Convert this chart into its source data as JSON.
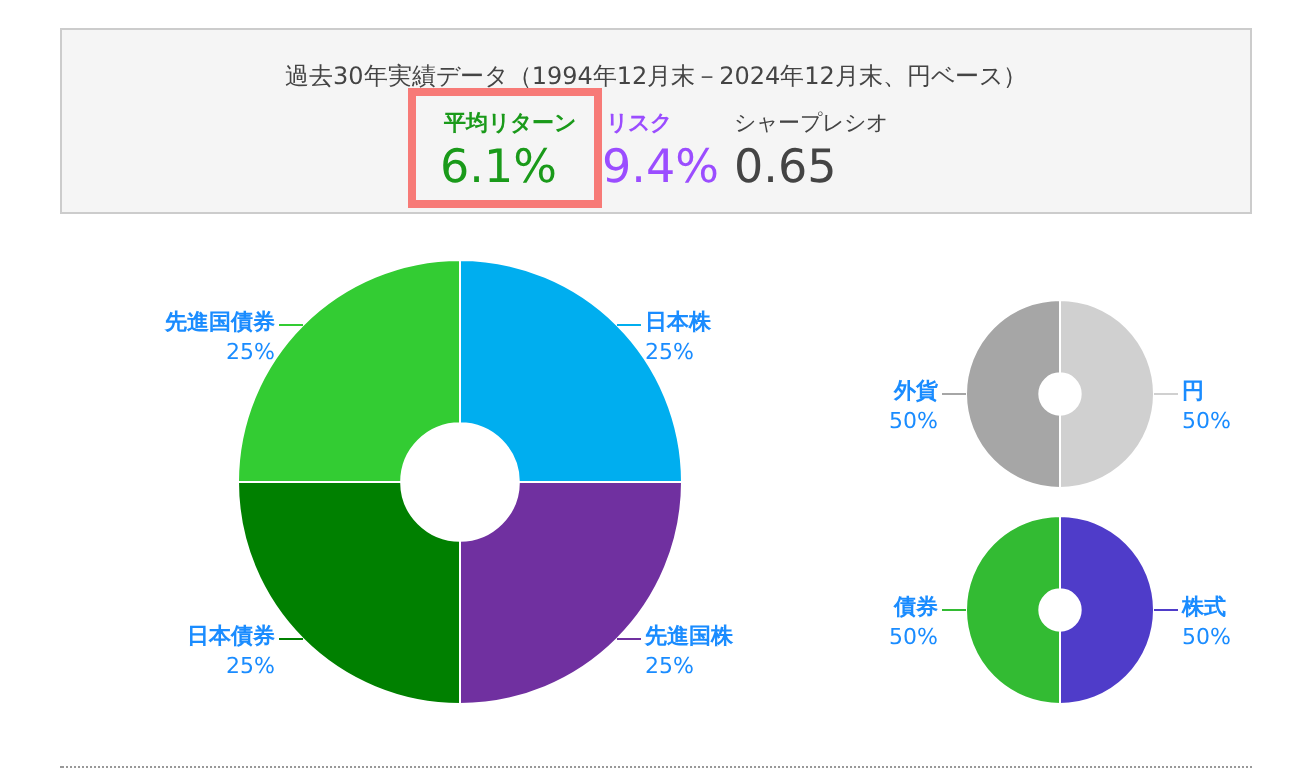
{
  "chart_data": [
    {
      "type": "other",
      "title": "過去30年実績データ（1994年12月末－2024年12月末、円ベース）",
      "annotations": [
        "平均リターン",
        "6.1%",
        "リスク",
        "9.4%",
        "シャープレシオ",
        "0.65"
      ]
    },
    {
      "type": "donut",
      "categories": [
        "日本株",
        "先進国株",
        "日本債券",
        "先進国債券"
      ],
      "values": [
        25,
        25,
        25,
        25
      ],
      "colors": [
        "#00aeef",
        "#7030a0",
        "#008000",
        "#33cc33"
      ],
      "value_labels": [
        "25%",
        "25%",
        "25%",
        "25%"
      ],
      "legend": false
    },
    {
      "type": "donut",
      "categories": [
        "円",
        "外貨"
      ],
      "values": [
        50,
        50
      ],
      "colors": [
        "#d0d0d0",
        "#a6a6a6"
      ],
      "value_labels": [
        "50%",
        "50%"
      ],
      "legend": false
    },
    {
      "type": "donut",
      "categories": [
        "株式",
        "債券"
      ],
      "values": [
        50,
        50
      ],
      "colors": [
        "#4f3cc9",
        "#33bb33"
      ],
      "value_labels": [
        "50%",
        "50%"
      ],
      "legend": false
    }
  ]
}
